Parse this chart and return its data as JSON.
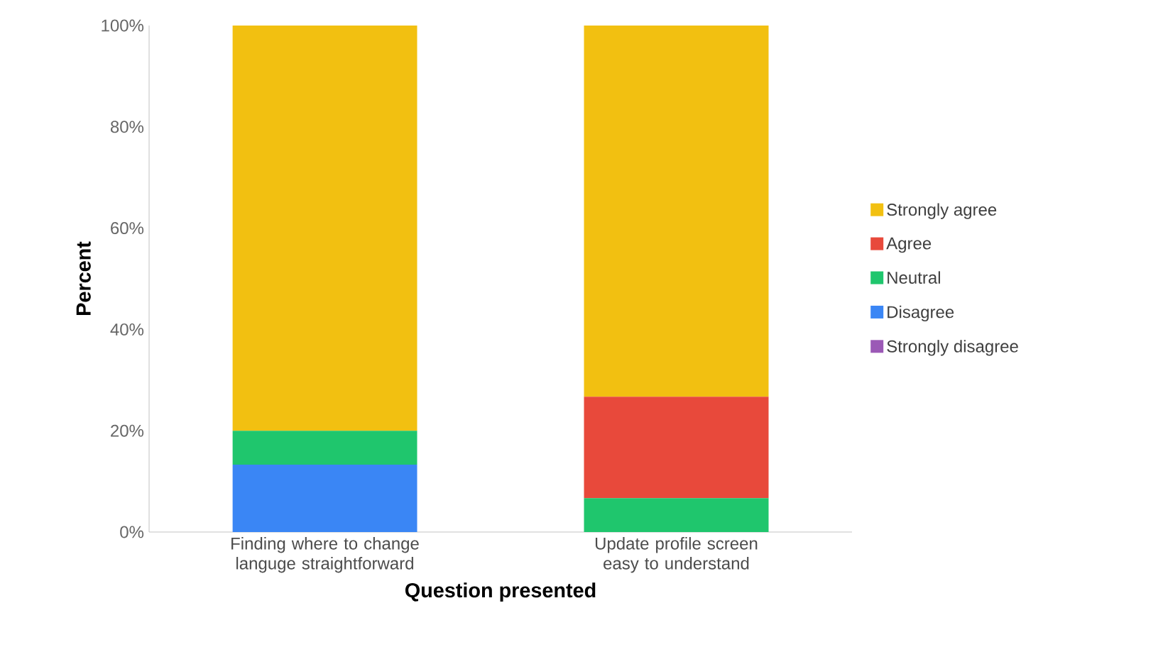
{
  "chart_data": {
    "type": "bar",
    "stacked": true,
    "xlabel": "Question presented",
    "ylabel": "Percent",
    "categories": [
      "Finding where to change languge straightforward",
      "Update profile screen easy to understand"
    ],
    "series": [
      {
        "name": "Strongly disagree",
        "color": "#9b59b6",
        "values": [
          0,
          0
        ]
      },
      {
        "name": "Disagree",
        "color": "#3a86f5",
        "values": [
          13.3,
          0
        ]
      },
      {
        "name": "Neutral",
        "color": "#1fc66d",
        "values": [
          6.7,
          6.7
        ]
      },
      {
        "name": "Agree",
        "color": "#e8493b",
        "values": [
          0,
          20
        ]
      },
      {
        "name": "Strongly agree",
        "color": "#f2c011",
        "values": [
          80,
          73.3
        ]
      }
    ],
    "ylim": [
      0,
      100
    ],
    "yticks": [
      {
        "value": 0,
        "label": "0%"
      },
      {
        "value": 20,
        "label": "20%"
      },
      {
        "value": 40,
        "label": "40%"
      },
      {
        "value": 60,
        "label": "60%"
      },
      {
        "value": 80,
        "label": "80%"
      },
      {
        "value": 100,
        "label": "100%"
      }
    ],
    "grid": false,
    "legend": "right"
  }
}
